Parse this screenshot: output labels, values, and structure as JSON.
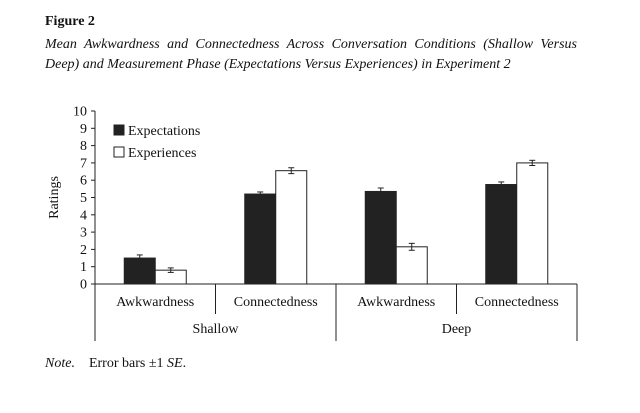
{
  "figure": {
    "label": "Figure 2",
    "title": "Mean Awkwardness and Connectedness Across Conversation Conditions (Shallow Versus Deep) and Measurement Phase (Expectations Versus Experiences) in Experiment 2"
  },
  "note": {
    "label": "Note.",
    "text": "Error bars ±1 ",
    "se": "SE",
    "end": "."
  },
  "chart_data": {
    "type": "bar",
    "ylabel": "Ratings",
    "ylim": [
      0,
      10
    ],
    "yticks": [
      0,
      1,
      2,
      3,
      4,
      5,
      6,
      7,
      8,
      9,
      10
    ],
    "legend_position": "top-left",
    "groups": [
      {
        "name": "Shallow",
        "categories": [
          "Awkwardness",
          "Connectedness"
        ]
      },
      {
        "name": "Deep",
        "categories": [
          "Awkwardness",
          "Connectedness"
        ]
      }
    ],
    "categories": [
      "Awkwardness",
      "Connectedness",
      "Awkwardness",
      "Connectedness"
    ],
    "series": [
      {
        "name": "Expectations",
        "color": "#222222",
        "values": [
          1.5,
          5.2,
          5.35,
          5.75
        ],
        "errors": [
          0.18,
          0.12,
          0.2,
          0.15
        ]
      },
      {
        "name": "Experiences",
        "color": "#ffffff",
        "values": [
          0.8,
          6.55,
          2.15,
          7.0
        ],
        "errors": [
          0.13,
          0.17,
          0.2,
          0.15
        ]
      }
    ]
  }
}
